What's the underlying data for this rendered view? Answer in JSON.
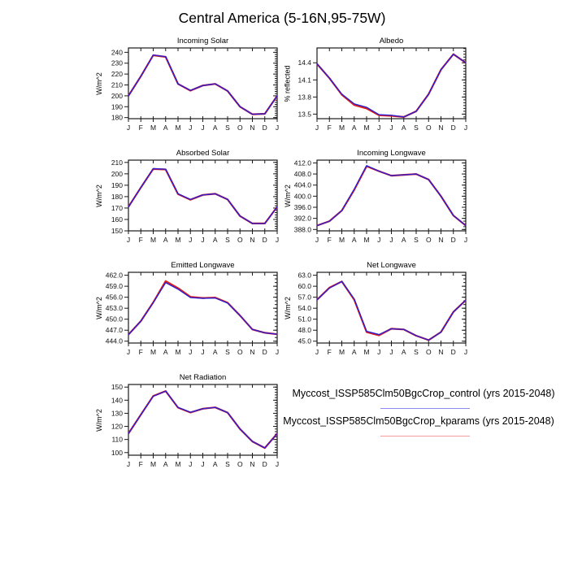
{
  "page_title": "Central America (5-16N,95-75W)",
  "months": [
    "J",
    "F",
    "M",
    "A",
    "M",
    "J",
    "J",
    "A",
    "S",
    "O",
    "N",
    "D",
    "J"
  ],
  "colors": {
    "control": "#2b1ecf",
    "kparams": "#e01f1f"
  },
  "legend": [
    {
      "label": "Myccost_ISSP585Clm50BgcCrop_control (yrs 2015-2048)",
      "color": "#8c8cf0"
    },
    {
      "label": "Myccost_ISSP585Clm50BgcCrop_kparams (yrs 2015-2048)",
      "color": "#f49b9b"
    }
  ],
  "chart_data": [
    {
      "type": "line",
      "title": "Incoming Solar",
      "ylabel": "W/m^2",
      "xticklabels": [
        "J",
        "F",
        "M",
        "A",
        "M",
        "J",
        "J",
        "A",
        "S",
        "O",
        "N",
        "D",
        "J"
      ],
      "ylim": [
        179,
        244
      ],
      "yticks": [
        180,
        190,
        200,
        210,
        220,
        230,
        240
      ],
      "decimals": 0,
      "minor_step": 2,
      "series": [
        {
          "name": "control",
          "values": [
            200,
            218,
            237.5,
            236,
            211,
            205,
            209.5,
            211,
            204.5,
            190,
            183,
            183.5,
            200
          ]
        },
        {
          "name": "kparams",
          "values": [
            200,
            218,
            237.3,
            235.8,
            211,
            204.8,
            209.5,
            211,
            204.5,
            190,
            183,
            183.5,
            200
          ]
        }
      ]
    },
    {
      "type": "line",
      "title": "Albedo",
      "ylabel": "% reflected",
      "xticklabels": [
        "J",
        "F",
        "M",
        "A",
        "M",
        "J",
        "J",
        "A",
        "S",
        "O",
        "N",
        "D",
        "J"
      ],
      "ylim": [
        13.42,
        14.66
      ],
      "yticks": [
        13.5,
        13.8,
        14.1,
        14.4
      ],
      "decimals": 1,
      "minor_step": 0.05,
      "series": [
        {
          "name": "control",
          "values": [
            14.38,
            14.13,
            13.85,
            13.68,
            13.62,
            13.49,
            13.48,
            13.45,
            13.55,
            13.85,
            14.28,
            14.55,
            14.4
          ]
        },
        {
          "name": "kparams",
          "values": [
            14.38,
            14.13,
            13.84,
            13.66,
            13.6,
            13.48,
            13.47,
            13.45,
            13.55,
            13.85,
            14.28,
            14.55,
            14.4
          ]
        }
      ]
    },
    {
      "type": "line",
      "title": "Absorbed Solar",
      "ylabel": "W/m^2",
      "xticklabels": [
        "J",
        "F",
        "M",
        "A",
        "M",
        "J",
        "J",
        "A",
        "S",
        "O",
        "N",
        "D",
        "J"
      ],
      "ylim": [
        150,
        212
      ],
      "yticks": [
        150,
        160,
        170,
        180,
        190,
        200,
        210
      ],
      "decimals": 0,
      "minor_step": 2,
      "series": [
        {
          "name": "control",
          "values": [
            171,
            188,
            204.5,
            204,
            182.5,
            177.5,
            181.5,
            182.5,
            177.5,
            163,
            156.5,
            156.5,
            171
          ]
        },
        {
          "name": "kparams",
          "values": [
            171,
            188,
            204.2,
            203.8,
            182.3,
            177.3,
            181.5,
            182.5,
            177.5,
            163,
            156.5,
            156.5,
            171
          ]
        }
      ]
    },
    {
      "type": "line",
      "title": "Incoming Longwave",
      "ylabel": "W/m^2",
      "xticklabels": [
        "J",
        "F",
        "M",
        "A",
        "M",
        "J",
        "J",
        "A",
        "S",
        "O",
        "N",
        "D",
        "J"
      ],
      "ylim": [
        387.5,
        413
      ],
      "yticks": [
        388,
        392,
        396,
        400,
        404,
        408,
        412
      ],
      "decimals": 1,
      "minor_step": 1,
      "series": [
        {
          "name": "control",
          "values": [
            389.4,
            391,
            394.8,
            402.5,
            411,
            409,
            407.4,
            407.7,
            408,
            406,
            400,
            393,
            389.4
          ]
        },
        {
          "name": "kparams",
          "values": [
            389.4,
            391,
            394.8,
            402.3,
            410.8,
            409,
            407.4,
            407.7,
            408,
            406,
            400,
            393,
            389.4
          ]
        }
      ]
    },
    {
      "type": "line",
      "title": "Emitted Longwave",
      "ylabel": "W/m^2",
      "xticklabels": [
        "J",
        "F",
        "M",
        "A",
        "M",
        "J",
        "J",
        "A",
        "S",
        "O",
        "N",
        "D",
        "J"
      ],
      "ylim": [
        443.5,
        462.8
      ],
      "yticks": [
        444,
        447,
        450,
        453,
        456,
        459,
        462
      ],
      "decimals": 1,
      "minor_step": 1,
      "series": [
        {
          "name": "control",
          "values": [
            445.8,
            449.5,
            454.5,
            460.0,
            458.2,
            455.9,
            455.7,
            455.8,
            454.4,
            451,
            447.2,
            446.3,
            445.9
          ]
        },
        {
          "name": "kparams",
          "values": [
            445.8,
            449.5,
            454.6,
            460.4,
            458.5,
            456.1,
            455.8,
            455.9,
            454.5,
            451,
            447.2,
            446.3,
            445.9
          ]
        }
      ]
    },
    {
      "type": "line",
      "title": "Net Longwave",
      "ylabel": "W/m^2",
      "xticklabels": [
        "J",
        "F",
        "M",
        "A",
        "M",
        "J",
        "J",
        "A",
        "S",
        "O",
        "N",
        "D",
        "J"
      ],
      "ylim": [
        44.5,
        63.8
      ],
      "yticks": [
        45,
        48,
        51,
        54,
        57,
        60,
        63
      ],
      "decimals": 1,
      "minor_step": 1,
      "series": [
        {
          "name": "control",
          "values": [
            56.3,
            59.5,
            61.3,
            56.5,
            47.7,
            46.8,
            48.4,
            48.2,
            46.5,
            45.3,
            47.5,
            53,
            56.2
          ]
        },
        {
          "name": "kparams",
          "values": [
            56.3,
            59.6,
            61.3,
            56.3,
            47.5,
            46.6,
            48.4,
            48.2,
            46.5,
            45.3,
            47.5,
            53,
            56.2
          ]
        }
      ]
    },
    {
      "type": "line",
      "title": "Net Radiation",
      "ylabel": "W/m^2",
      "xticklabels": [
        "J",
        "F",
        "M",
        "A",
        "M",
        "J",
        "J",
        "A",
        "S",
        "O",
        "N",
        "D",
        "J"
      ],
      "ylim": [
        98,
        152
      ],
      "yticks": [
        100,
        110,
        120,
        130,
        140,
        150
      ],
      "decimals": 0,
      "minor_step": 2,
      "series": [
        {
          "name": "control",
          "values": [
            114.5,
            129,
            143,
            147,
            134.5,
            130.8,
            133.5,
            134.5,
            130.5,
            118,
            108.5,
            103.5,
            114.5
          ]
        },
        {
          "name": "kparams",
          "values": [
            114.5,
            129,
            143.2,
            147,
            134.3,
            130.6,
            133.5,
            134.5,
            130.5,
            118,
            108.5,
            103.5,
            114.5
          ]
        }
      ]
    }
  ]
}
